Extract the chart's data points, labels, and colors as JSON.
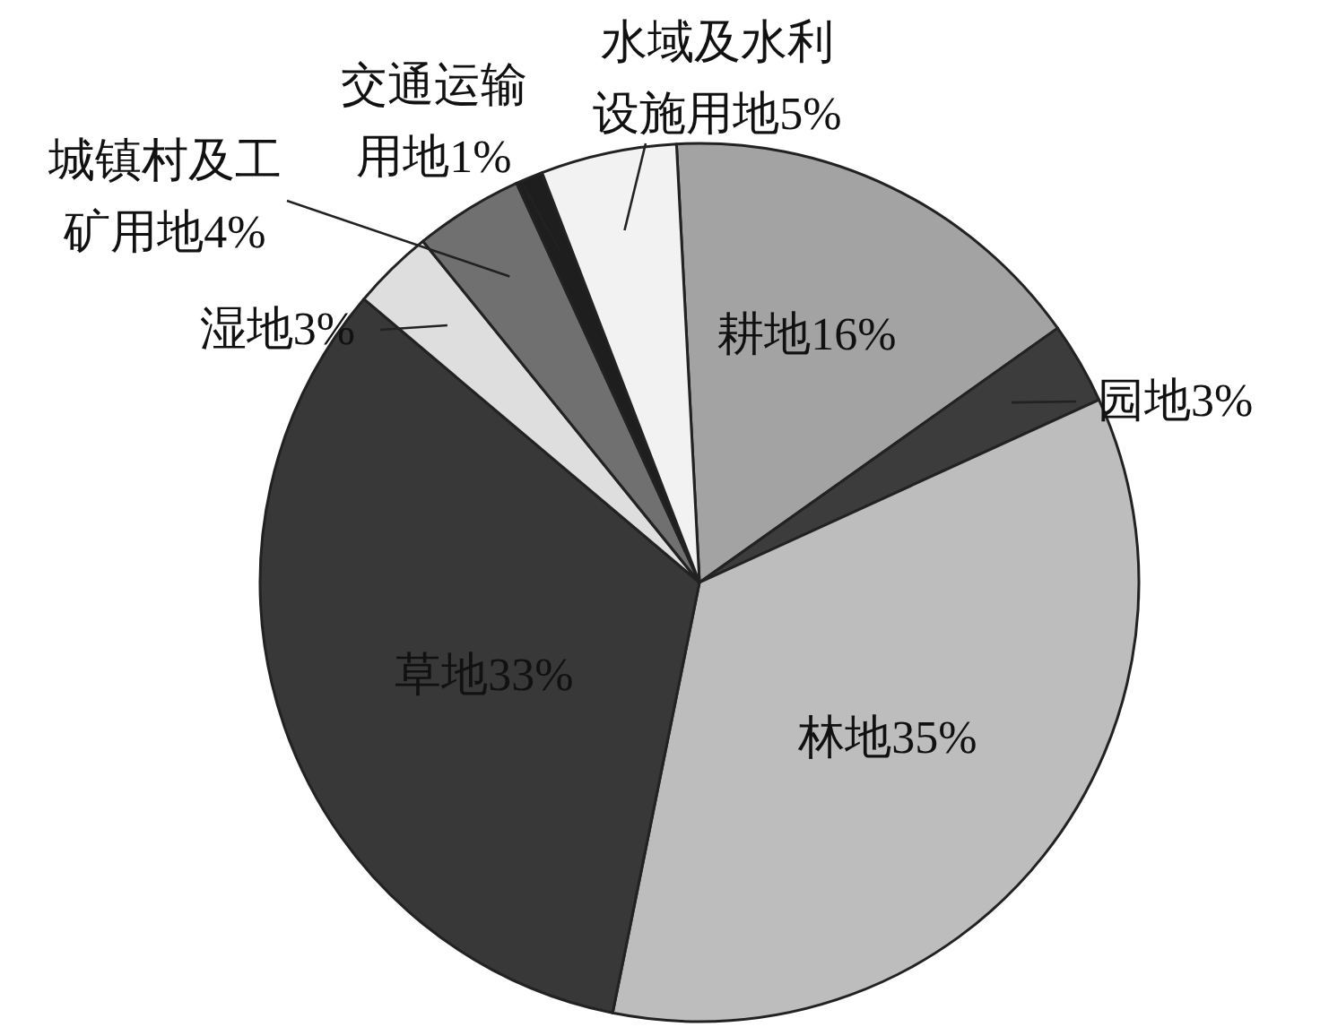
{
  "chart_data": {
    "type": "pie",
    "categories": [
      "耕地16%",
      "园地3%",
      "林地35%",
      "草地33%",
      "湿地3%",
      "城镇村及工矿用地4%",
      "交通运输用地1%",
      "水域及水利设施用地5%"
    ],
    "values": [
      16,
      3,
      35,
      33,
      3,
      4,
      1,
      5
    ],
    "colors": [
      "#a3a3a3",
      "#3c3c3c",
      "#bdbdbd",
      "#383838",
      "#dedede",
      "#707070",
      "#1e1e1e",
      "#f2f2f2"
    ]
  }
}
